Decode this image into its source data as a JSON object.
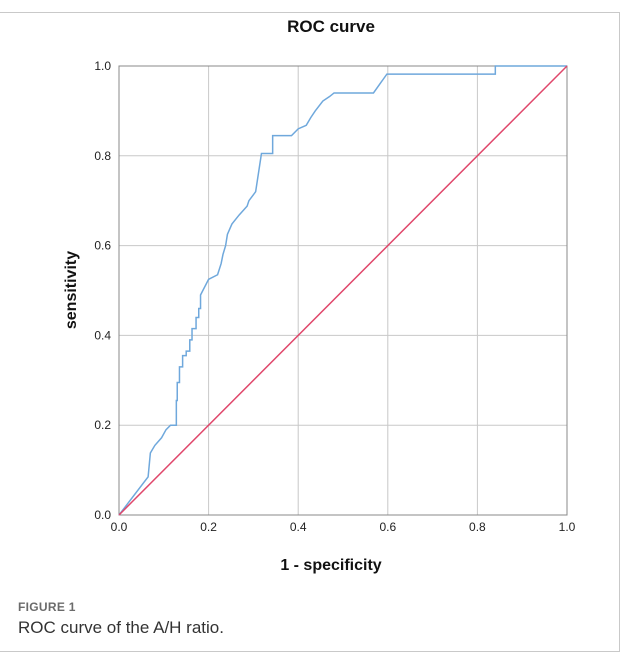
{
  "figure": {
    "label": "FIGURE 1",
    "caption": "ROC curve of the A/H ratio."
  },
  "chart_data": {
    "type": "line",
    "title": "ROC curve",
    "xlabel": "1 - specificity",
    "ylabel": "sensitivity",
    "xlim": [
      0,
      1
    ],
    "ylim": [
      0,
      1
    ],
    "x_ticks": [
      "0.0",
      "0.2",
      "0.4",
      "0.6",
      "0.8",
      "1.0"
    ],
    "y_ticks": [
      "0.0",
      "0.2",
      "0.4",
      "0.6",
      "0.8",
      "1.0"
    ],
    "grid": true,
    "legend": "none",
    "series": [
      {
        "color": "#6fa8dc",
        "x": [
          0,
          0.065,
          0.065,
          0.07,
          0.07,
          0.08,
          0.08,
          0.095,
          0.095,
          0.105,
          0.105,
          0.115,
          0.115,
          0.128,
          0.128,
          0.13,
          0.13,
          0.135,
          0.135,
          0.142,
          0.142,
          0.15,
          0.15,
          0.158,
          0.158,
          0.163,
          0.163,
          0.172,
          0.172,
          0.178,
          0.178,
          0.182,
          0.182,
          0.2,
          0.2,
          0.22,
          0.22,
          0.228,
          0.228,
          0.232,
          0.232,
          0.238,
          0.238,
          0.242,
          0.242,
          0.252,
          0.252,
          0.268,
          0.268,
          0.286,
          0.286,
          0.29,
          0.29,
          0.305,
          0.305,
          0.318,
          0.318,
          0.343,
          0.343,
          0.385,
          0.385,
          0.4,
          0.4,
          0.418,
          0.418,
          0.428,
          0.428,
          0.438,
          0.438,
          0.455,
          0.455,
          0.47,
          0.47,
          0.48,
          0.48,
          0.568,
          0.568,
          0.598,
          0.598,
          0.84,
          0.84,
          1.0
        ],
        "y": [
          0,
          0.085,
          0.085,
          0.138,
          0.138,
          0.155,
          0.155,
          0.172,
          0.172,
          0.19,
          0.19,
          0.2,
          0.2,
          0.2,
          0.255,
          0.255,
          0.295,
          0.295,
          0.33,
          0.33,
          0.355,
          0.355,
          0.365,
          0.365,
          0.39,
          0.39,
          0.415,
          0.415,
          0.44,
          0.44,
          0.46,
          0.46,
          0.49,
          0.525,
          0.525,
          0.535,
          0.535,
          0.56,
          0.56,
          0.58,
          0.58,
          0.6,
          0.6,
          0.625,
          0.625,
          0.648,
          0.648,
          0.668,
          0.668,
          0.688,
          0.688,
          0.7,
          0.7,
          0.72,
          0.72,
          0.805,
          0.805,
          0.805,
          0.845,
          0.845,
          0.845,
          0.86,
          0.86,
          0.868,
          0.868,
          0.885,
          0.885,
          0.9,
          0.9,
          0.922,
          0.922,
          0.932,
          0.932,
          0.94,
          0.94,
          0.94,
          0.94,
          0.982,
          0.982,
          0.982,
          1.0,
          1.0
        ]
      },
      {
        "color": "#e0476b",
        "x": [
          0,
          1
        ],
        "y": [
          0,
          1
        ]
      }
    ]
  }
}
